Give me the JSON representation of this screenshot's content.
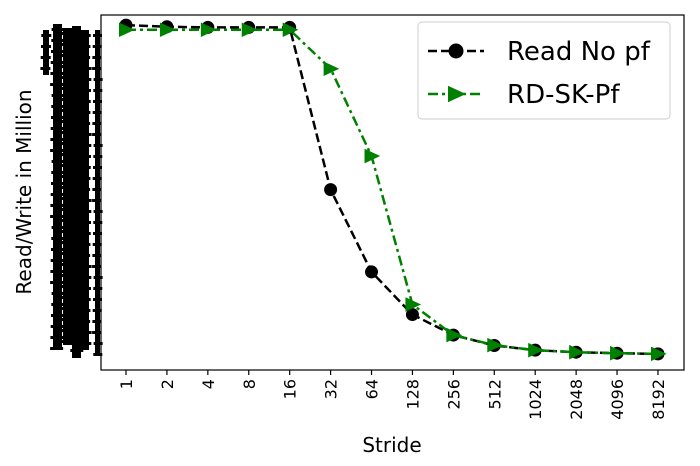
{
  "chart_data": {
    "type": "line",
    "xlabel": "Stride",
    "ylabel": "Read/Write in Million",
    "x": [
      "1",
      "2",
      "4",
      "8",
      "16",
      "32",
      "64",
      "128",
      "256",
      "512",
      "1024",
      "2048",
      "4096",
      "8192"
    ],
    "series": [
      {
        "name": "Read No pf",
        "color": "#000000",
        "marker": "circle",
        "line_style": "dashed",
        "values": [
          100.0,
          99.5,
          99.3,
          99.3,
          99.3,
          51.0,
          26.5,
          13.8,
          7.7,
          4.6,
          3.2,
          2.6,
          2.3,
          2.1
        ]
      },
      {
        "name": "RD-SK-Pf",
        "color": "#008000",
        "marker": "triangle-right",
        "line_style": "dash-dot",
        "values": [
          98.6,
          98.6,
          98.6,
          98.6,
          98.6,
          87.0,
          61.0,
          16.8,
          7.7,
          4.7,
          3.2,
          2.6,
          2.3,
          2.1
        ]
      }
    ],
    "ylim": [
      -2.7,
      103.0
    ],
    "y_tick_labels": "obscured (redacted)",
    "grid": false,
    "legend_position": "top-right"
  }
}
